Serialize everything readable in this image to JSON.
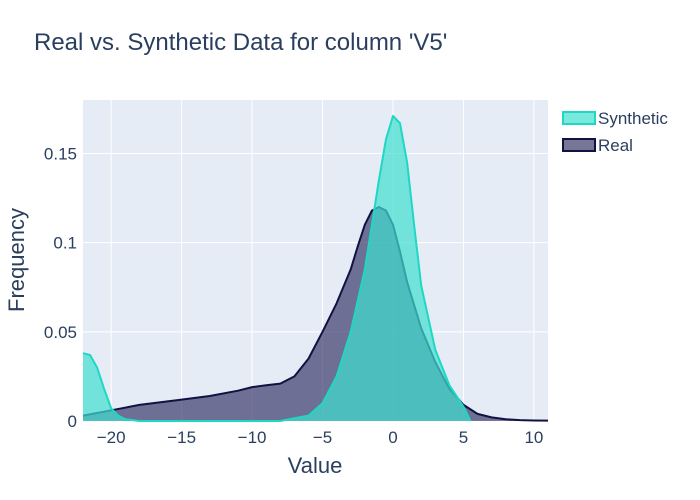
{
  "chart_data": {
    "type": "area",
    "title": "Real vs. Synthetic Data for column 'V5'",
    "xlabel": "Value",
    "ylabel": "Frequency",
    "xlim": [
      -22,
      11
    ],
    "ylim": [
      0,
      0.18
    ],
    "x_ticks": [
      -20,
      -15,
      -10,
      -5,
      0,
      5,
      10
    ],
    "x_tick_labels": [
      "−20",
      "−15",
      "−10",
      "−5",
      "0",
      "5",
      "10"
    ],
    "y_ticks": [
      0,
      0.05,
      0.1,
      0.15
    ],
    "y_tick_labels": [
      "0",
      "0.05",
      "0.1",
      "0.15"
    ],
    "grid": true,
    "legend_position": "top-right",
    "series": [
      {
        "name": "Synthetic",
        "line_color": "#1fd7c4",
        "fill_color": "rgba(64,224,208,0.7)",
        "x": [
          -22,
          -21.5,
          -21,
          -20.5,
          -20,
          -19.5,
          -19,
          -18,
          -16,
          -12,
          -8,
          -6,
          -5,
          -4,
          -3,
          -2,
          -1.5,
          -1,
          -0.5,
          0,
          0.5,
          1,
          1.5,
          2,
          3,
          4,
          5,
          5.5
        ],
        "y": [
          0.038,
          0.037,
          0.03,
          0.018,
          0.007,
          0.003,
          0.001,
          0.0,
          0.0,
          0.0,
          0.0,
          0.003,
          0.01,
          0.025,
          0.05,
          0.085,
          0.11,
          0.135,
          0.158,
          0.171,
          0.167,
          0.145,
          0.11,
          0.076,
          0.04,
          0.02,
          0.008,
          0.0
        ]
      },
      {
        "name": "Real",
        "line_color": "#121242",
        "fill_color": "rgba(44,44,96,0.65)",
        "x": [
          -22,
          -20,
          -18,
          -15,
          -13,
          -11,
          -10,
          -9,
          -8,
          -7,
          -6,
          -5,
          -4,
          -3,
          -2.5,
          -2,
          -1.5,
          -1,
          -0.5,
          0,
          0.5,
          1,
          2,
          3,
          4,
          5,
          6,
          7,
          8,
          9,
          10,
          11
        ],
        "y": [
          0.003,
          0.006,
          0.009,
          0.012,
          0.014,
          0.017,
          0.019,
          0.02,
          0.021,
          0.025,
          0.035,
          0.05,
          0.066,
          0.085,
          0.098,
          0.11,
          0.118,
          0.12,
          0.118,
          0.11,
          0.095,
          0.078,
          0.052,
          0.033,
          0.018,
          0.009,
          0.004,
          0.002,
          0.001,
          0.0005,
          0.0003,
          0.0002
        ]
      }
    ]
  }
}
